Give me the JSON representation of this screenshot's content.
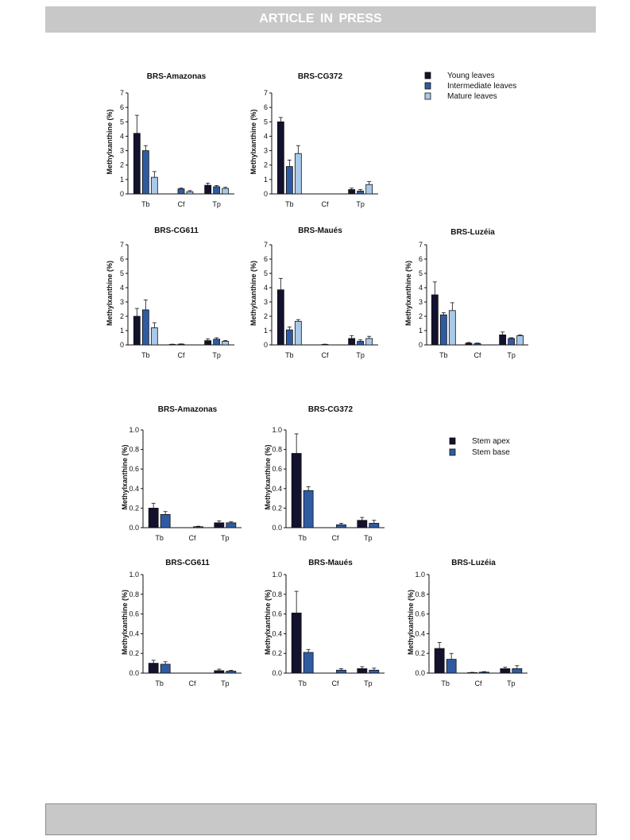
{
  "banner": {
    "text": "ARTICLE IN PRESS"
  },
  "colors": {
    "young": "#12122e",
    "intermediate": "#2f5ba3",
    "mature": "#a9c9ea",
    "stem_apex": "#12122e",
    "stem_base": "#2f5ba3",
    "banner": "#c8c8c8"
  },
  "legends": {
    "leaves": [
      {
        "label": "Young leaves",
        "color": "#12122e"
      },
      {
        "label": "Intermediate leaves",
        "color": "#2f5ba3"
      },
      {
        "label": "Mature leaves",
        "color": "#a9c9ea"
      }
    ],
    "stems": [
      {
        "label": "Stem apex",
        "color": "#12122e"
      },
      {
        "label": "Stem base",
        "color": "#2f5ba3"
      }
    ]
  },
  "chart_data": [
    {
      "type": "bar",
      "title": "BRS-Amazonas",
      "ylabel": "Methylxanthine (%)",
      "xlabel": "",
      "categories": [
        "Tb",
        "Cf",
        "Tp"
      ],
      "ylim": [
        0,
        7
      ],
      "yticks": [
        "0",
        "1",
        "2",
        "3",
        "4",
        "5",
        "6",
        "7"
      ],
      "series": [
        {
          "name": "Young leaves",
          "values": [
            4.2,
            0,
            0.6
          ],
          "errors": [
            1.25,
            0,
            0.15
          ]
        },
        {
          "name": "Intermediate leaves",
          "values": [
            3.0,
            0.35,
            0.5
          ],
          "errors": [
            0.35,
            0.05,
            0.08
          ]
        },
        {
          "name": "Mature leaves",
          "values": [
            1.15,
            0.15,
            0.38
          ],
          "errors": [
            0.4,
            0.08,
            0.08
          ]
        }
      ]
    },
    {
      "type": "bar",
      "title": "BRS-CG372",
      "ylabel": "Methylxanthine (%)",
      "xlabel": "",
      "categories": [
        "Tb",
        "Cf",
        "Tp"
      ],
      "ylim": [
        0,
        7
      ],
      "yticks": [
        "0",
        "1",
        "2",
        "3",
        "4",
        "5",
        "6",
        "7"
      ],
      "series": [
        {
          "name": "Young leaves",
          "values": [
            5.0,
            0,
            0.3
          ],
          "errors": [
            0.3,
            0,
            0.1
          ]
        },
        {
          "name": "Intermediate leaves",
          "values": [
            1.9,
            0,
            0.2
          ],
          "errors": [
            0.45,
            0,
            0.1
          ]
        },
        {
          "name": "Mature leaves",
          "values": [
            2.8,
            0,
            0.65
          ],
          "errors": [
            0.55,
            0,
            0.2
          ]
        }
      ]
    },
    {
      "type": "bar",
      "title": "BRS-CG611",
      "ylabel": "Methylxanthine (%)",
      "xlabel": "",
      "categories": [
        "Tb",
        "Cf",
        "Tp"
      ],
      "ylim": [
        0,
        7
      ],
      "yticks": [
        "0",
        "1",
        "2",
        "3",
        "4",
        "5",
        "6",
        "7"
      ],
      "series": [
        {
          "name": "Young leaves",
          "values": [
            2.0,
            0.03,
            0.3
          ],
          "errors": [
            0.55,
            0.02,
            0.12
          ]
        },
        {
          "name": "Intermediate leaves",
          "values": [
            2.45,
            0.05,
            0.4
          ],
          "errors": [
            0.7,
            0.02,
            0.1
          ]
        },
        {
          "name": "Mature leaves",
          "values": [
            1.2,
            0,
            0.25
          ],
          "errors": [
            0.35,
            0,
            0.05
          ]
        }
      ]
    },
    {
      "type": "bar",
      "title": "BRS-Maués",
      "ylabel": "Methylxanthine (%)",
      "xlabel": "",
      "categories": [
        "Tb",
        "Cf",
        "Tp"
      ],
      "ylim": [
        0,
        7
      ],
      "yticks": [
        "0",
        "1",
        "2",
        "3",
        "4",
        "5",
        "6",
        "7"
      ],
      "series": [
        {
          "name": "Young leaves",
          "values": [
            3.85,
            0,
            0.45
          ],
          "errors": [
            0.8,
            0,
            0.2
          ]
        },
        {
          "name": "Intermediate leaves",
          "values": [
            1.05,
            0.03,
            0.25
          ],
          "errors": [
            0.2,
            0.02,
            0.1
          ]
        },
        {
          "name": "Mature leaves",
          "values": [
            1.65,
            0,
            0.45
          ],
          "errors": [
            0.12,
            0,
            0.15
          ]
        }
      ]
    },
    {
      "type": "bar",
      "title": "BRS-Luzéia",
      "ylabel": "Methylxanthine (%)",
      "xlabel": "",
      "categories": [
        "Tb",
        "Cf",
        "Tp"
      ],
      "ylim": [
        0,
        7
      ],
      "yticks": [
        "0",
        "1",
        "2",
        "3",
        "4",
        "5",
        "6",
        "7"
      ],
      "series": [
        {
          "name": "Young leaves",
          "values": [
            3.5,
            0.12,
            0.7
          ],
          "errors": [
            0.9,
            0.05,
            0.2
          ]
        },
        {
          "name": "Intermediate leaves",
          "values": [
            2.1,
            0.1,
            0.45
          ],
          "errors": [
            0.15,
            0.03,
            0.05
          ]
        },
        {
          "name": "Mature leaves",
          "values": [
            2.4,
            0,
            0.65
          ],
          "errors": [
            0.55,
            0,
            0.05
          ]
        }
      ]
    },
    {
      "type": "bar",
      "title": "BRS-Amazonas",
      "ylabel": "Methylxanthine (%)",
      "xlabel": "",
      "categories": [
        "Tb",
        "Cf",
        "Tp"
      ],
      "ylim": [
        0,
        1
      ],
      "yticks": [
        "0.0",
        "0.2",
        "0.4",
        "0.6",
        "0.8",
        "1.0"
      ],
      "series": [
        {
          "name": "Stem apex",
          "values": [
            0.2,
            0,
            0.05
          ],
          "errors": [
            0.05,
            0,
            0.02
          ]
        },
        {
          "name": "Stem base",
          "values": [
            0.135,
            0.01,
            0.05
          ],
          "errors": [
            0.03,
            0.005,
            0.01
          ]
        }
      ]
    },
    {
      "type": "bar",
      "title": "BRS-CG372",
      "ylabel": "Methylxanthine (%)",
      "xlabel": "",
      "categories": [
        "Tb",
        "Cf",
        "Tp"
      ],
      "ylim": [
        0,
        1
      ],
      "yticks": [
        "0.0",
        "0.2",
        "0.4",
        "0.6",
        "0.8",
        "1.0"
      ],
      "series": [
        {
          "name": "Stem apex",
          "values": [
            0.76,
            0,
            0.075
          ],
          "errors": [
            0.2,
            0,
            0.03
          ]
        },
        {
          "name": "Stem base",
          "values": [
            0.38,
            0.03,
            0.045
          ],
          "errors": [
            0.04,
            0.015,
            0.03
          ]
        }
      ]
    },
    {
      "type": "bar",
      "title": "BRS-CG611",
      "ylabel": "Methylxanthine (%)",
      "xlabel": "",
      "categories": [
        "Tb",
        "Cf",
        "Tp"
      ],
      "ylim": [
        0,
        1
      ],
      "yticks": [
        "0.0",
        "0.2",
        "0.4",
        "0.6",
        "0.8",
        "1.0"
      ],
      "series": [
        {
          "name": "Stem apex",
          "values": [
            0.1,
            0,
            0.025
          ],
          "errors": [
            0.03,
            0,
            0.015
          ]
        },
        {
          "name": "Stem base",
          "values": [
            0.09,
            0,
            0.02
          ],
          "errors": [
            0.025,
            0,
            0.008
          ]
        }
      ]
    },
    {
      "type": "bar",
      "title": "BRS-Maués",
      "ylabel": "Methylxanthine (%)",
      "xlabel": "",
      "categories": [
        "Tb",
        "Cf",
        "Tp"
      ],
      "ylim": [
        0,
        1
      ],
      "yticks": [
        "0.0",
        "0.2",
        "0.4",
        "0.6",
        "0.8",
        "1.0"
      ],
      "series": [
        {
          "name": "Stem apex",
          "values": [
            0.61,
            0,
            0.045
          ],
          "errors": [
            0.22,
            0,
            0.02
          ]
        },
        {
          "name": "Stem base",
          "values": [
            0.21,
            0.03,
            0.03
          ],
          "errors": [
            0.03,
            0.015,
            0.02
          ]
        }
      ]
    },
    {
      "type": "bar",
      "title": "BRS-Luzéia",
      "ylabel": "Methylxanthine (%)",
      "xlabel": "",
      "categories": [
        "Tb",
        "Cf",
        "Tp"
      ],
      "ylim": [
        0,
        1
      ],
      "yticks": [
        "0.0",
        "0.2",
        "0.4",
        "0.6",
        "0.8",
        "1.0"
      ],
      "series": [
        {
          "name": "Stem apex",
          "values": [
            0.25,
            0.005,
            0.045
          ],
          "errors": [
            0.06,
            0.003,
            0.015
          ]
        },
        {
          "name": "Stem base",
          "values": [
            0.14,
            0.01,
            0.045
          ],
          "errors": [
            0.06,
            0.005,
            0.03
          ]
        }
      ]
    }
  ]
}
